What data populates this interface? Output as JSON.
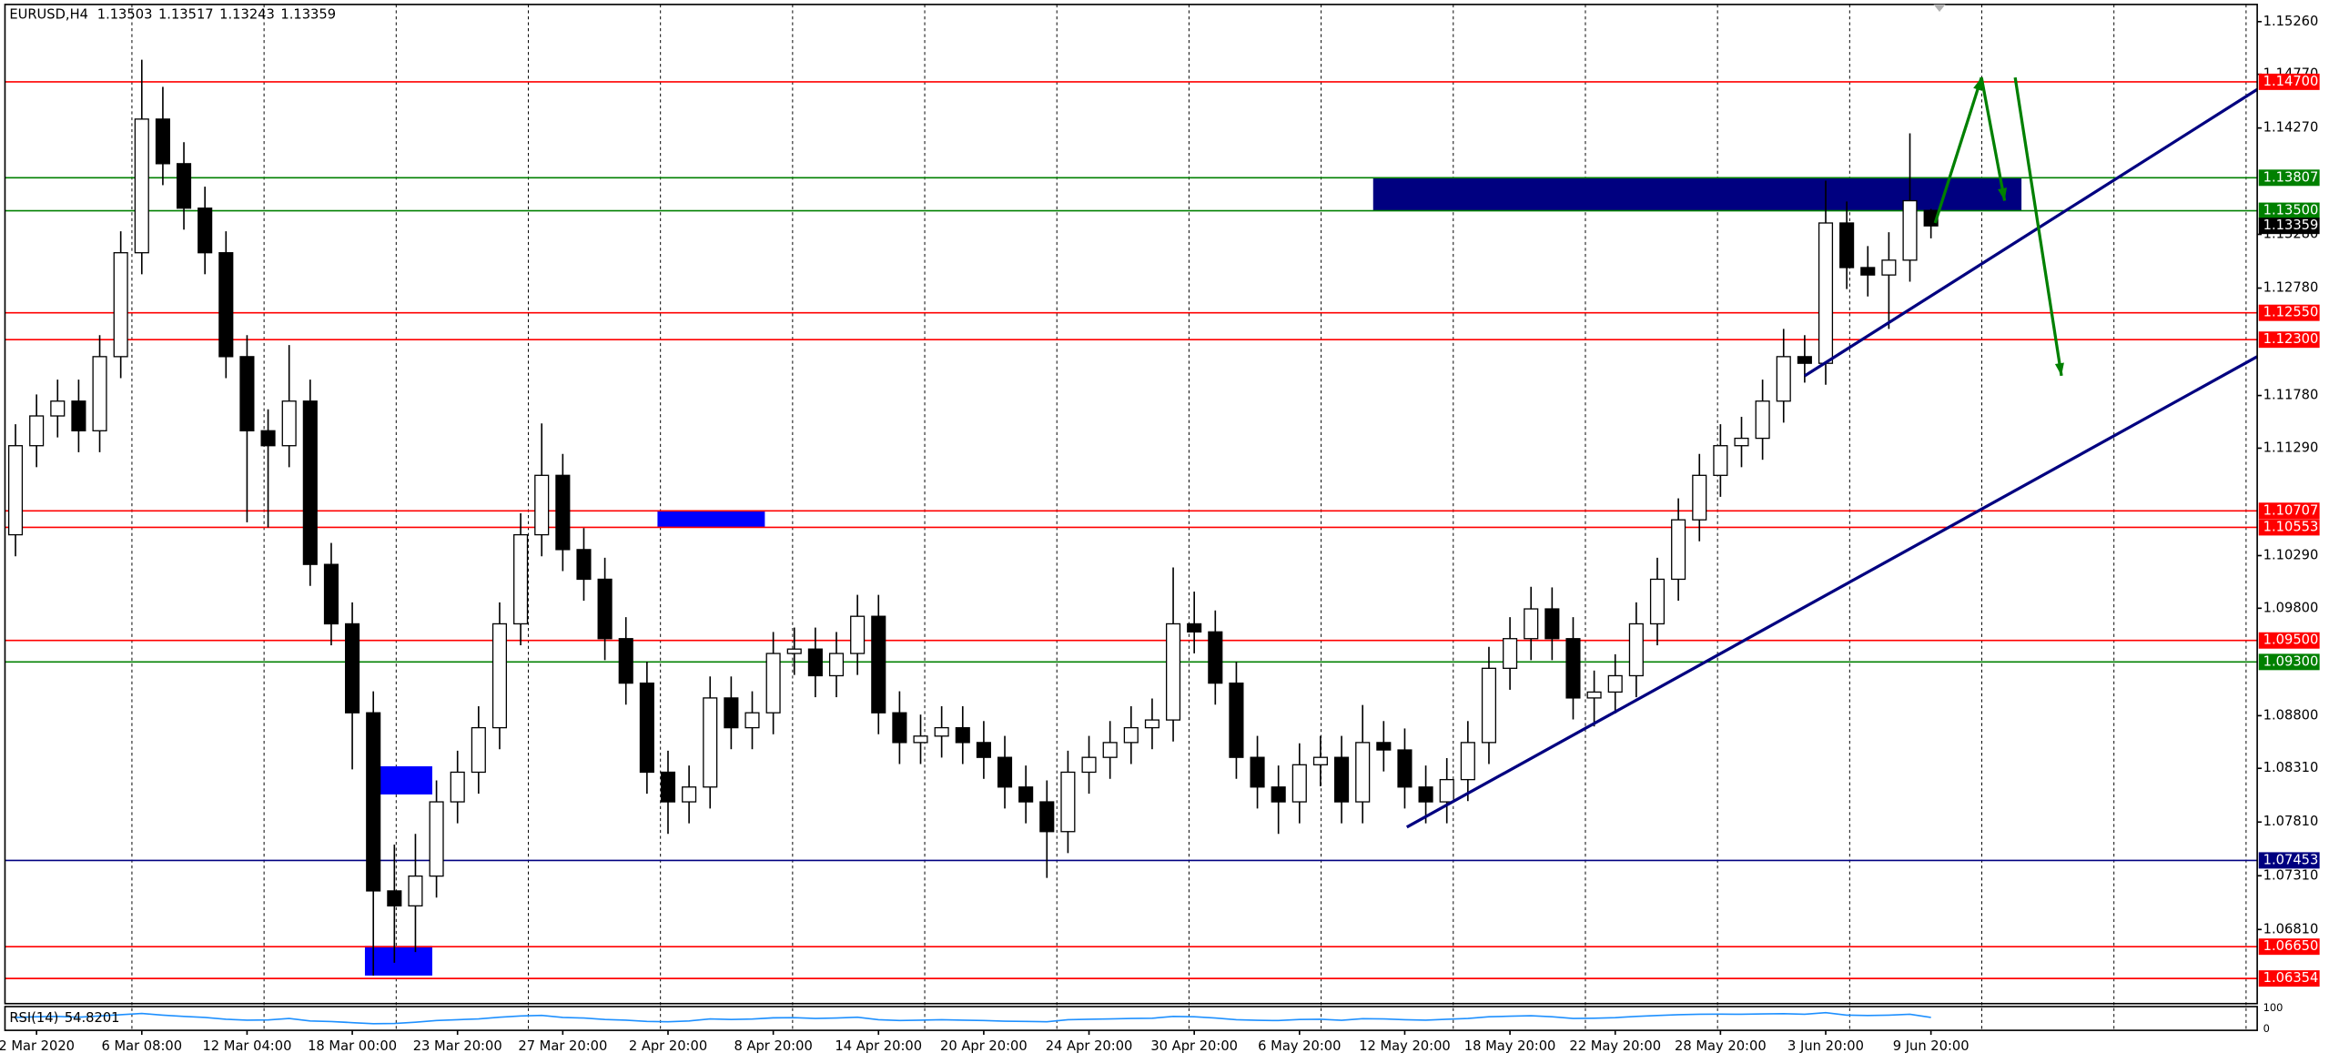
{
  "chart_data": {
    "type": "candlestick",
    "title": "EURUSD,H4",
    "categories": [
      null,
      "2 Mar 2020",
      null,
      null,
      null,
      null,
      "6 Mar 08:00",
      null,
      null,
      null,
      null,
      "12 Mar 04:00",
      null,
      null,
      null,
      null,
      "18 Mar 00:00",
      null,
      null,
      null,
      null,
      "23 Mar 20:00",
      null,
      null,
      null,
      null,
      "27 Mar 20:00",
      null,
      null,
      null,
      null,
      "2 Apr 20:00",
      null,
      null,
      null,
      null,
      "8 Apr 20:00",
      null,
      null,
      null,
      null,
      "14 Apr 20:00",
      null,
      null,
      null,
      null,
      "20 Apr 20:00",
      null,
      null,
      null,
      null,
      "24 Apr 20:00",
      null,
      null,
      null,
      null,
      "30 Apr 20:00",
      null,
      null,
      null,
      null,
      "6 May 20:00",
      null,
      null,
      null,
      null,
      "12 May 20:00",
      null,
      null,
      null,
      null,
      "18 May 20:00",
      null,
      null,
      null,
      null,
      "22 May 20:00",
      null,
      null,
      null,
      null,
      "28 May 20:00",
      null,
      null,
      null,
      null,
      "3 Jun 20:00",
      null,
      null,
      null,
      null,
      "9 Jun 20:00"
    ],
    "open": [
      1.10484,
      1.11313,
      1.1159,
      1.11728,
      1.11452,
      1.12142,
      1.13109,
      1.14353,
      1.13938,
      1.13524,
      1.13109,
      1.12142,
      1.11452,
      1.11313,
      1.11728,
      1.10208,
      1.09655,
      1.08827,
      1.07169,
      1.0703,
      1.07307,
      1.07998,
      1.08274,
      1.08688,
      1.09655,
      1.10484,
      1.11037,
      1.10346,
      1.1007,
      1.09517,
      1.09103,
      1.08274,
      1.07998,
      1.08136,
      1.08965,
      1.08688,
      1.08827,
      1.09379,
      1.0942,
      1.09172,
      1.09379,
      1.09725,
      1.08827,
      1.0855,
      1.0861,
      1.08688,
      1.0855,
      1.08412,
      1.08136,
      1.07998,
      1.07721,
      1.08274,
      1.08412,
      1.0855,
      1.08688,
      1.0876,
      1.09655,
      1.0958,
      1.09103,
      1.08412,
      1.08136,
      1.07998,
      1.08343,
      1.08412,
      1.07998,
      1.0855,
      1.08481,
      1.08136,
      1.07998,
      1.08205,
      1.0855,
      1.09241,
      1.09517,
      1.09794,
      1.09517,
      1.08965,
      1.0902,
      1.09172,
      1.09655,
      1.1007,
      1.10623,
      1.11037,
      1.11313,
      1.11382,
      1.11728,
      1.12142,
      1.1208,
      1.13386,
      1.12971,
      1.12902,
      1.1304,
      1.13503
    ],
    "high": [
      1.11513,
      1.1179,
      1.11928,
      1.11928,
      1.12342,
      1.13309,
      1.14906,
      1.14653,
      1.14138,
      1.13724,
      1.13309,
      1.12342,
      1.11652,
      1.1225,
      1.11928,
      1.10408,
      1.09855,
      1.09027,
      1.076,
      1.077,
      1.08198,
      1.08474,
      1.08888,
      1.09855,
      1.10684,
      1.1152,
      1.11237,
      1.10546,
      1.1027,
      1.09717,
      1.09303,
      1.08474,
      1.08336,
      1.09165,
      1.09165,
      1.09027,
      1.09579,
      1.0962,
      1.0962,
      1.09579,
      1.09925,
      1.09925,
      1.09027,
      1.0881,
      1.08888,
      1.08888,
      1.0875,
      1.08612,
      1.08336,
      1.08198,
      1.08474,
      1.08612,
      1.0875,
      1.08888,
      1.0896,
      1.1018,
      1.09955,
      1.0978,
      1.09303,
      1.08612,
      1.08336,
      1.08543,
      1.08612,
      1.08612,
      1.089,
      1.0875,
      1.08681,
      1.08336,
      1.08405,
      1.0875,
      1.09441,
      1.09717,
      1.1,
      1.09994,
      1.09717,
      1.0922,
      1.09372,
      1.09855,
      1.1027,
      1.10823,
      1.11237,
      1.11513,
      1.11582,
      1.11928,
      1.124,
      1.12342,
      1.1378,
      1.13586,
      1.13171,
      1.133,
      1.1422,
      1.13517
    ],
    "low": [
      1.10284,
      1.11113,
      1.1139,
      1.11252,
      1.11252,
      1.11942,
      1.12909,
      1.13738,
      1.13324,
      1.12909,
      1.11942,
      1.106,
      1.10553,
      1.11113,
      1.10008,
      1.09455,
      1.083,
      1.0638,
      1.065,
      1.066,
      1.07107,
      1.07798,
      1.08074,
      1.08488,
      1.09455,
      1.10284,
      1.10146,
      1.0987,
      1.09317,
      1.08903,
      1.08074,
      1.077,
      1.07798,
      1.07936,
      1.08488,
      1.08488,
      1.08627,
      1.09179,
      1.08972,
      1.08972,
      1.09179,
      1.08627,
      1.0835,
      1.0835,
      1.0841,
      1.0835,
      1.08212,
      1.07936,
      1.07798,
      1.0729,
      1.07521,
      1.08074,
      1.08212,
      1.0835,
      1.08488,
      1.0856,
      1.0938,
      1.08903,
      1.08212,
      1.07936,
      1.077,
      1.07798,
      1.08143,
      1.07798,
      1.07798,
      1.08281,
      1.07936,
      1.07798,
      1.07798,
      1.08005,
      1.0835,
      1.09041,
      1.09317,
      1.09317,
      1.08765,
      1.087,
      1.0882,
      1.08972,
      1.09455,
      1.0987,
      1.10423,
      1.10837,
      1.11113,
      1.11182,
      1.11528,
      1.119,
      1.1188,
      1.12771,
      1.12702,
      1.124,
      1.1284,
      1.13243
    ],
    "close": [
      1.11313,
      1.1159,
      1.11728,
      1.11452,
      1.12142,
      1.13109,
      1.14353,
      1.13938,
      1.13524,
      1.13109,
      1.12142,
      1.11452,
      1.11313,
      1.11728,
      1.10208,
      1.09655,
      1.08827,
      1.07169,
      1.0703,
      1.07307,
      1.07998,
      1.08274,
      1.08688,
      1.09655,
      1.10484,
      1.11037,
      1.10346,
      1.1007,
      1.09517,
      1.09103,
      1.08274,
      1.07998,
      1.08136,
      1.08965,
      1.08688,
      1.08827,
      1.09379,
      1.0942,
      1.09172,
      1.09379,
      1.09725,
      1.08827,
      1.0855,
      1.0861,
      1.08688,
      1.0855,
      1.08412,
      1.08136,
      1.07998,
      1.07721,
      1.08274,
      1.08412,
      1.0855,
      1.08688,
      1.0876,
      1.09655,
      1.0958,
      1.09103,
      1.08412,
      1.08136,
      1.07998,
      1.08343,
      1.08412,
      1.07998,
      1.0855,
      1.08481,
      1.08136,
      1.07998,
      1.08205,
      1.0855,
      1.09241,
      1.09517,
      1.09794,
      1.09517,
      1.08965,
      1.0902,
      1.09172,
      1.09655,
      1.1007,
      1.10623,
      1.11037,
      1.11313,
      1.11382,
      1.11728,
      1.12142,
      1.1208,
      1.13386,
      1.12971,
      1.12902,
      1.1304,
      1.13593,
      1.13359
    ],
    "bull_color": "#ffffff",
    "bear_color": "#000000",
    "ylim": [
      1.0612,
      1.1542
    ],
    "yticks": [
      {
        "value": 1.1526,
        "label": "1.15260"
      },
      {
        "value": 1.1477,
        "label": "1.14770"
      },
      {
        "value": 1.1427,
        "label": "1.14270"
      },
      {
        "value": 1.1328,
        "label": "1.13280"
      },
      {
        "value": 1.1278,
        "label": "1.12780"
      },
      {
        "value": 1.1178,
        "label": "1.11780"
      },
      {
        "value": 1.1129,
        "label": "1.11290"
      },
      {
        "value": 1.1029,
        "label": "1.10290"
      },
      {
        "value": 1.098,
        "label": "1.09800"
      },
      {
        "value": 1.088,
        "label": "1.08800"
      },
      {
        "value": 1.0831,
        "label": "1.08310"
      },
      {
        "value": 1.0781,
        "label": "1.07810"
      },
      {
        "value": 1.0731,
        "label": "1.07310"
      },
      {
        "value": 1.0681,
        "label": "1.06810"
      }
    ],
    "levels": [
      {
        "value": 1.147,
        "label": "1.14700",
        "color": "#ff0000"
      },
      {
        "value": 1.13807,
        "label": "1.13807",
        "color": "#008000"
      },
      {
        "value": 1.135,
        "label": "1.13500",
        "color": "#008000"
      },
      {
        "value": 1.1255,
        "label": "1.12550",
        "color": "#ff0000"
      },
      {
        "value": 1.123,
        "label": "1.12300",
        "color": "#ff0000"
      },
      {
        "value": 1.10707,
        "label": "1.10707",
        "color": "#ff0000"
      },
      {
        "value": 1.10553,
        "label": "1.10553",
        "color": "#ff0000"
      },
      {
        "value": 1.095,
        "label": "1.09500",
        "color": "#ff0000"
      },
      {
        "value": 1.093,
        "label": "1.09300",
        "color": "#008000"
      },
      {
        "value": 1.07453,
        "label": "1.07453",
        "color": "#000080"
      },
      {
        "value": 1.0665,
        "label": "1.06650",
        "color": "#ff0000"
      },
      {
        "value": 1.06354,
        "label": "1.06354",
        "color": "#ff0000"
      }
    ],
    "zones": [
      {
        "x": [
          64.5,
          95.3
        ],
        "y": [
          1.13807,
          1.135
        ],
        "color": "#000080"
      },
      {
        "x": [
          30.5,
          35.6
        ],
        "y": [
          1.10707,
          1.10553
        ],
        "color": "#0000ff"
      },
      {
        "x": [
          16.7,
          19.8
        ],
        "y": [
          1.08329,
          1.08067
        ],
        "color": "#0000ff"
      },
      {
        "x": [
          16.6,
          19.8
        ],
        "y": [
          1.06657,
          1.06381
        ],
        "color": "#0000ff"
      }
    ],
    "lines": [
      {
        "x": [
          66.1,
          106.5
        ],
        "y": [
          1.07763,
          1.12142
        ],
        "color": "#000080",
        "arrow": false
      },
      {
        "x": [
          85.0,
          106.5
        ],
        "y": [
          1.11963,
          1.14629
        ],
        "color": "#000080",
        "arrow": false
      },
      {
        "x": [
          91.2,
          93.4
        ],
        "y": [
          1.13386,
          1.1474
        ],
        "color": "#008000",
        "arrow": true
      },
      {
        "x": [
          93.4,
          94.5
        ],
        "y": [
          1.1474,
          1.13593
        ],
        "color": "#008000",
        "arrow": true
      },
      {
        "x": [
          95.0,
          97.2
        ],
        "y": [
          1.1474,
          1.11964
        ],
        "color": "#008000",
        "arrow": true
      }
    ],
    "grid": true,
    "rsi": {
      "name": "RSI(14)",
      "color": "#1e90ff",
      "ylim": [
        0,
        100
      ],
      "yticks": [
        100,
        0
      ],
      "values": [
        55,
        58,
        60,
        56,
        62,
        68,
        74,
        66,
        60,
        55,
        46,
        42,
        43,
        50,
        38,
        35,
        30,
        25,
        26,
        32,
        40,
        44,
        48,
        56,
        62,
        65,
        55,
        52,
        45,
        42,
        36,
        34,
        38,
        48,
        45,
        47,
        53,
        54,
        50,
        52,
        56,
        44,
        40,
        42,
        44,
        42,
        40,
        37,
        36,
        34,
        44,
        46,
        48,
        50,
        51,
        60,
        58,
        52,
        44,
        41,
        40,
        45,
        46,
        41,
        49,
        48,
        44,
        42,
        46,
        50,
        58,
        61,
        63,
        58,
        50,
        51,
        54,
        60,
        64,
        68,
        70,
        71,
        70,
        72,
        73,
        70,
        78,
        66,
        64,
        66,
        70,
        54.8201
      ]
    }
  }
}
